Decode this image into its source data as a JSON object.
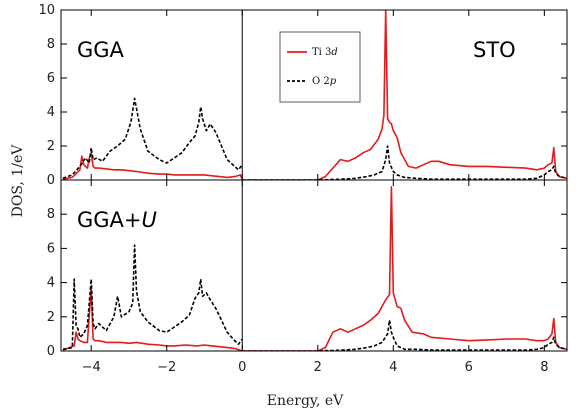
{
  "chart_data": {
    "type": "line",
    "xlabel": "Energy, eV",
    "ylabel": "DOS, 1/eV",
    "xlim": [
      -4.8,
      8.6
    ],
    "x_ticks": [
      -4,
      -2,
      0,
      2,
      4,
      6,
      8
    ],
    "y_ticks": [
      0,
      2,
      4,
      6,
      8,
      10
    ],
    "y_ticks_lower": [
      0,
      2,
      4,
      6,
      8
    ],
    "legend": {
      "placement": "top-center-right",
      "entries": [
        {
          "label": "Ti 3",
          "italic": "d",
          "color": "#e41a1c",
          "dash": "solid"
        },
        {
          "label": "O 2",
          "italic": "p",
          "color": "#000000",
          "dash": "dashed"
        }
      ]
    },
    "panels": [
      {
        "id": "gga",
        "label": "GGA",
        "label_italic": "",
        "right_label": "STO",
        "ylim": [
          0,
          10
        ],
        "series": [
          {
            "name": "Ti 3d",
            "color": "#e41a1c",
            "dash": "solid",
            "x": [
              -4.75,
              -4.5,
              -4.3,
              -4.25,
              -4.2,
              -4.1,
              -4.05,
              -4.0,
              -3.95,
              -3.9,
              -3.8,
              -3.6,
              -3.4,
              -3.2,
              -3.0,
              -2.8,
              -2.5,
              -2.2,
              -2.0,
              -1.8,
              -1.6,
              -1.4,
              -1.2,
              -1.0,
              -0.8,
              -0.6,
              -0.4,
              -0.2,
              -0.05,
              0.0
            ],
            "y": [
              0.05,
              0.15,
              0.6,
              1.4,
              0.9,
              0.7,
              1.3,
              1.6,
              0.8,
              0.7,
              0.7,
              0.65,
              0.6,
              0.6,
              0.55,
              0.5,
              0.4,
              0.35,
              0.35,
              0.3,
              0.3,
              0.3,
              0.3,
              0.3,
              0.25,
              0.2,
              0.15,
              0.2,
              0.3,
              0.0
            ]
          },
          {
            "name": "Ti 3d",
            "color": "#e41a1c",
            "dash": "solid",
            "x": [
              0.0,
              1.0,
              2.0,
              2.2,
              2.4,
              2.6,
              2.8,
              3.0,
              3.2,
              3.4,
              3.6,
              3.7,
              3.75,
              3.8,
              3.85,
              3.9,
              3.95,
              4.0,
              4.1,
              4.2,
              4.4,
              4.6,
              4.8,
              5.0,
              5.2,
              5.5,
              6.0,
              6.5,
              7.0,
              7.5,
              7.8,
              8.0,
              8.1,
              8.2,
              8.25,
              8.3,
              8.4,
              8.6
            ],
            "y": [
              0.0,
              0.0,
              0.0,
              0.2,
              0.7,
              1.2,
              1.1,
              1.3,
              1.6,
              1.8,
              2.4,
              3.0,
              3.8,
              10.0,
              3.6,
              3.4,
              3.3,
              2.9,
              2.5,
              1.6,
              0.8,
              0.7,
              0.9,
              1.1,
              1.1,
              0.9,
              0.8,
              0.8,
              0.75,
              0.7,
              0.6,
              0.7,
              0.9,
              1.0,
              1.9,
              0.5,
              0.2,
              0.1
            ]
          },
          {
            "name": "O 2p",
            "color": "#000000",
            "dash": "dashed",
            "x": [
              -4.75,
              -4.5,
              -4.3,
              -4.15,
              -4.05,
              -4.0,
              -3.95,
              -3.85,
              -3.7,
              -3.5,
              -3.3,
              -3.1,
              -2.95,
              -2.85,
              -2.8,
              -2.7,
              -2.5,
              -2.2,
              -2.0,
              -1.8,
              -1.6,
              -1.4,
              -1.25,
              -1.15,
              -1.1,
              -1.05,
              -0.95,
              -0.85,
              -0.7,
              -0.55,
              -0.4,
              -0.2,
              -0.1,
              0.0
            ],
            "y": [
              0.1,
              0.3,
              0.8,
              1.3,
              1.0,
              1.9,
              1.2,
              1.3,
              1.1,
              1.7,
              2.0,
              2.4,
              3.4,
              4.8,
              4.2,
              3.0,
              1.7,
              1.2,
              1.0,
              1.3,
              1.6,
              2.2,
              2.6,
              3.4,
              4.3,
              3.6,
              2.9,
              3.3,
              2.8,
              2.0,
              1.2,
              0.8,
              0.6,
              0.9
            ]
          },
          {
            "name": "O 2p",
            "color": "#000000",
            "dash": "dashed",
            "x": [
              0.0,
              1.0,
              2.0,
              2.6,
              3.0,
              3.3,
              3.5,
              3.7,
              3.8,
              3.85,
              3.9,
              4.0,
              4.1,
              4.3,
              4.6,
              5.0,
              6.0,
              7.0,
              7.5,
              7.8,
              8.0,
              8.1,
              8.2,
              8.25,
              8.3,
              8.4,
              8.6
            ],
            "y": [
              0.0,
              0.0,
              0.0,
              0.05,
              0.1,
              0.2,
              0.3,
              0.5,
              1.2,
              2.0,
              1.0,
              0.5,
              0.3,
              0.15,
              0.1,
              0.05,
              0.05,
              0.05,
              0.05,
              0.1,
              0.3,
              0.5,
              0.6,
              0.8,
              0.4,
              0.2,
              0.1
            ]
          }
        ]
      },
      {
        "id": "gga_u",
        "label": "GGA+",
        "label_italic": "U",
        "right_label": "",
        "ylim": [
          0,
          10
        ],
        "series": [
          {
            "name": "Ti 3d",
            "color": "#e41a1c",
            "dash": "solid",
            "x": [
              -4.75,
              -4.45,
              -4.4,
              -4.35,
              -4.3,
              -4.2,
              -4.1,
              -4.0,
              -3.95,
              -3.9,
              -3.8,
              -3.6,
              -3.4,
              -3.2,
              -3.0,
              -2.8,
              -2.5,
              -2.2,
              -2.0,
              -1.8,
              -1.5,
              -1.2,
              -1.0,
              -0.8,
              -0.6,
              -0.4,
              -0.2,
              0.0
            ],
            "y": [
              0.05,
              0.3,
              1.1,
              0.7,
              0.6,
              0.5,
              0.5,
              3.7,
              0.7,
              0.6,
              0.6,
              0.5,
              0.5,
              0.5,
              0.45,
              0.5,
              0.4,
              0.35,
              0.3,
              0.3,
              0.35,
              0.3,
              0.35,
              0.3,
              0.25,
              0.2,
              0.15,
              0.0
            ]
          },
          {
            "name": "Ti 3d",
            "color": "#e41a1c",
            "dash": "solid",
            "x": [
              0.0,
              1.0,
              2.0,
              2.2,
              2.4,
              2.6,
              2.8,
              3.0,
              3.2,
              3.4,
              3.6,
              3.8,
              3.9,
              3.95,
              4.0,
              4.05,
              4.1,
              4.2,
              4.3,
              4.5,
              4.8,
              5.0,
              5.5,
              6.0,
              6.5,
              7.0,
              7.5,
              7.8,
              8.0,
              8.1,
              8.2,
              8.25,
              8.3,
              8.4,
              8.6
            ],
            "y": [
              0.0,
              0.0,
              0.0,
              0.2,
              1.1,
              1.3,
              1.1,
              1.3,
              1.5,
              1.8,
              2.2,
              3.0,
              3.3,
              9.6,
              3.4,
              3.0,
              2.6,
              2.5,
              1.8,
              1.1,
              1.0,
              0.8,
              0.7,
              0.6,
              0.65,
              0.7,
              0.7,
              0.6,
              0.6,
              0.7,
              1.0,
              1.9,
              0.5,
              0.2,
              0.1
            ]
          },
          {
            "name": "O 2p",
            "color": "#000000",
            "dash": "dashed",
            "x": [
              -4.75,
              -4.5,
              -4.45,
              -4.4,
              -4.35,
              -4.3,
              -4.2,
              -4.1,
              -4.0,
              -3.95,
              -3.9,
              -3.8,
              -3.6,
              -3.4,
              -3.3,
              -3.2,
              -3.0,
              -2.9,
              -2.85,
              -2.8,
              -2.7,
              -2.5,
              -2.2,
              -2.0,
              -1.8,
              -1.6,
              -1.4,
              -1.25,
              -1.15,
              -1.1,
              -1.05,
              -0.95,
              -0.85,
              -0.7,
              -0.55,
              -0.4,
              -0.2,
              -0.1,
              0.0
            ],
            "y": [
              0.1,
              0.2,
              4.2,
              1.5,
              1.3,
              0.8,
              1.0,
              1.5,
              4.2,
              1.6,
              1.3,
              1.6,
              1.2,
              2.0,
              3.2,
              2.0,
              2.3,
              2.8,
              6.2,
              3.5,
              2.3,
              1.7,
              1.2,
              1.1,
              1.4,
              1.7,
              2.1,
              3.1,
              3.4,
              4.2,
              3.2,
              3.4,
              3.0,
              2.5,
              1.8,
              1.1,
              0.6,
              0.4,
              0.7
            ]
          },
          {
            "name": "O 2p",
            "color": "#000000",
            "dash": "dashed",
            "x": [
              0.0,
              1.0,
              2.0,
              2.6,
              3.0,
              3.3,
              3.5,
              3.7,
              3.85,
              3.9,
              3.95,
              4.0,
              4.1,
              4.3,
              4.6,
              5.0,
              6.0,
              7.0,
              7.5,
              7.8,
              8.0,
              8.1,
              8.2,
              8.25,
              8.3,
              8.4,
              8.6
            ],
            "y": [
              0.0,
              0.0,
              0.0,
              0.05,
              0.1,
              0.2,
              0.3,
              0.5,
              1.0,
              1.8,
              1.1,
              0.8,
              0.3,
              0.1,
              0.1,
              0.05,
              0.05,
              0.05,
              0.05,
              0.1,
              0.2,
              0.4,
              0.5,
              0.8,
              0.4,
              0.2,
              0.1
            ]
          }
        ]
      }
    ]
  }
}
